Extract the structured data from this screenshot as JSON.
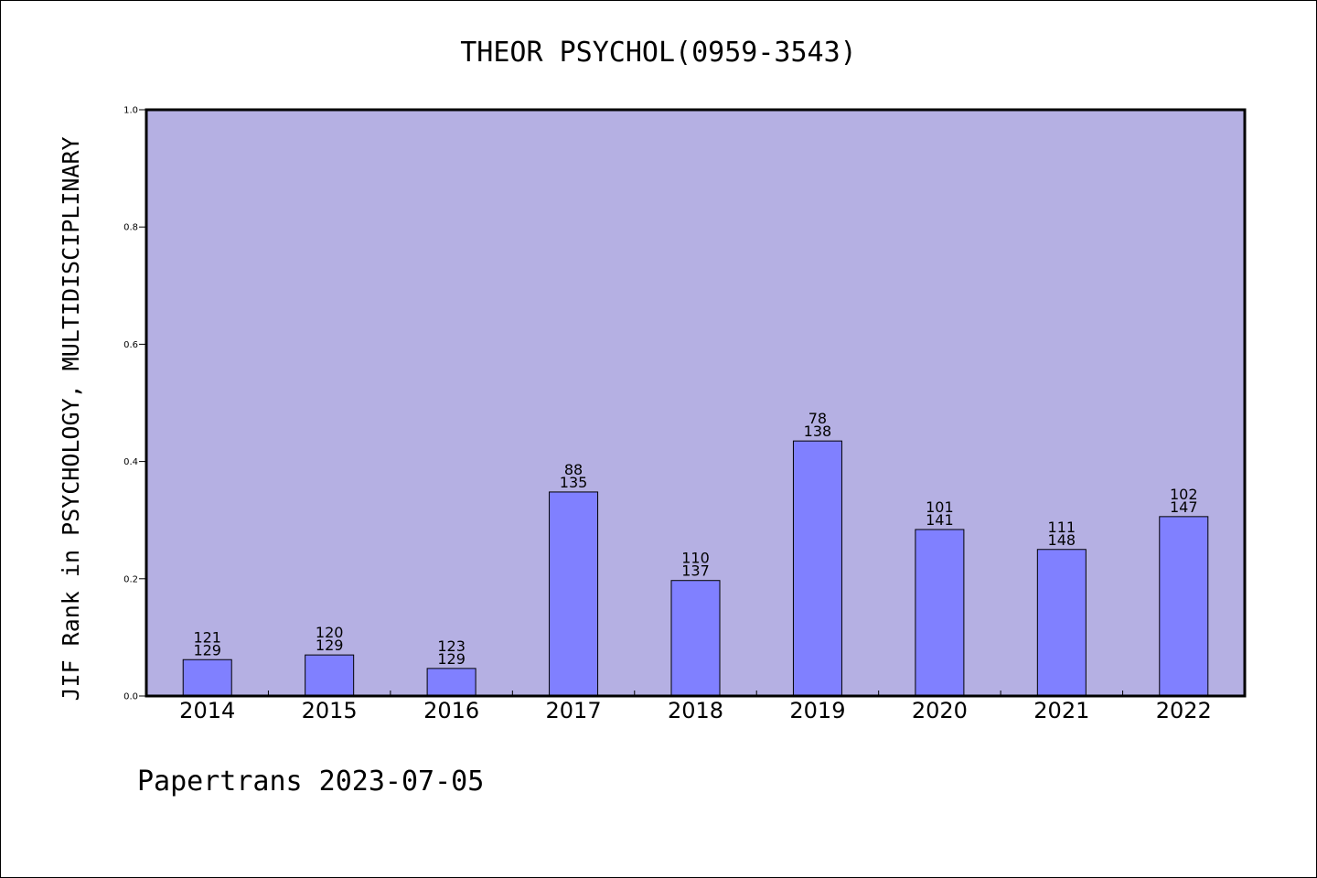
{
  "chart_data": {
    "type": "bar",
    "title": "THEOR PSYCHOL(0959-3543)",
    "ylabel": "JIF Rank in PSYCHOLOGY, MULTIDISCIPLINARY",
    "xlabel": "",
    "ylim": [
      0,
      1.0
    ],
    "yticks": [
      "0.0",
      "0.2",
      "0.4",
      "0.6",
      "0.8",
      "1.0"
    ],
    "categories": [
      "2014",
      "2015",
      "2016",
      "2017",
      "2018",
      "2019",
      "2020",
      "2021",
      "2022"
    ],
    "values": [
      0.062,
      0.07,
      0.047,
      0.348,
      0.197,
      0.435,
      0.284,
      0.25,
      0.306
    ],
    "ranks": [
      "121",
      "120",
      "123",
      "88",
      "110",
      "78",
      "101",
      "111",
      "102"
    ],
    "totals": [
      "129",
      "129",
      "129",
      "135",
      "137",
      "138",
      "141",
      "148",
      "147"
    ],
    "grid": false,
    "legend": "none",
    "colors": {
      "plot_background": "#b5b0e3",
      "bar_fill": "#8080ff",
      "bar_stroke": "#000000"
    }
  },
  "footer": "Papertrans 2023-07-05"
}
